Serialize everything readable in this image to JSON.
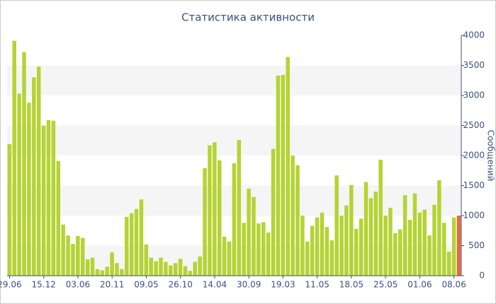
{
  "chart_data": {
    "type": "bar",
    "title": "Статистика активности",
    "y_label": "Сообщений",
    "categories": [
      "29.06",
      null,
      null,
      null,
      null,
      null,
      null,
      "15.12",
      null,
      null,
      null,
      null,
      null,
      null,
      "03.06",
      null,
      null,
      null,
      null,
      null,
      null,
      "20.11",
      null,
      null,
      null,
      null,
      null,
      null,
      "09.05",
      null,
      null,
      null,
      null,
      null,
      null,
      "26.10",
      null,
      null,
      null,
      null,
      null,
      null,
      "14.04",
      null,
      null,
      null,
      null,
      null,
      null,
      "30.09",
      null,
      null,
      null,
      null,
      null,
      null,
      "19.03",
      null,
      null,
      null,
      null,
      null,
      null,
      "11.05",
      null,
      null,
      null,
      null,
      null,
      null,
      "18.05",
      null,
      null,
      null,
      null,
      null,
      null,
      "25.05",
      null,
      null,
      null,
      null,
      null,
      null,
      "01.06",
      null,
      null,
      null,
      null,
      null,
      null,
      "08.06",
      null
    ],
    "values": [
      2190,
      3910,
      3030,
      3720,
      2880,
      3300,
      3480,
      2500,
      2590,
      2580,
      1910,
      850,
      670,
      530,
      660,
      630,
      270,
      300,
      110,
      90,
      150,
      390,
      210,
      110,
      980,
      1040,
      1110,
      1270,
      520,
      300,
      240,
      300,
      230,
      170,
      210,
      280,
      160,
      80,
      230,
      320,
      1790,
      2170,
      2220,
      1920,
      650,
      570,
      1870,
      2260,
      880,
      1450,
      1310,
      870,
      890,
      720,
      2110,
      3330,
      3340,
      3640,
      2000,
      1840,
      1000,
      570,
      830,
      970,
      1050,
      810,
      590,
      1670,
      1000,
      1170,
      1510,
      780,
      950,
      1560,
      1290,
      1400,
      1930,
      1000,
      1130,
      710,
      770,
      1340,
      930,
      1370,
      1050,
      1100,
      670,
      1180,
      1590,
      880,
      400,
      970,
      1000
    ],
    "color": "#b5d334",
    "last_color": "#e56b37",
    "ylim": [
      0,
      4000
    ],
    "yticks": [
      0,
      500,
      1000,
      1500,
      2000,
      2500,
      3000,
      3500,
      4000
    ],
    "grid_bands": true
  }
}
